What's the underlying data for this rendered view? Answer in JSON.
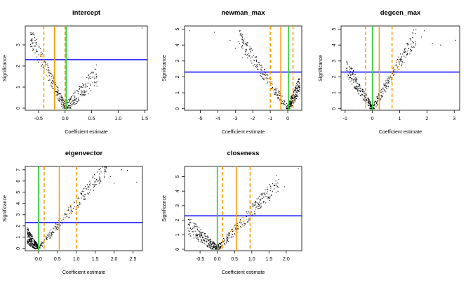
{
  "colors": {
    "points": "#000000",
    "significance_line": "#0000ff",
    "zero_line": "#33cc33",
    "estimate_line": "#ff9900",
    "axis": "#000000"
  },
  "chart_data": [
    {
      "type": "scatter",
      "title": "intercept",
      "xlabel": "Coefficient estimate",
      "ylabel": "Significance",
      "xlim": [
        -0.75,
        1.55
      ],
      "ylim": [
        -0.1,
        3.9
      ],
      "xticks": [
        -0.5,
        0.0,
        0.5,
        1.0,
        1.5
      ],
      "xtick_labels": [
        "-0.5",
        "0.0",
        "0.5",
        "1.0",
        "1.5"
      ],
      "yticks": [
        0,
        1,
        2,
        3
      ],
      "ytick_labels": [
        "0",
        "1",
        "2",
        "3"
      ],
      "threshold_y": 2.3,
      "zero_x": 0.02,
      "estimate_x": -0.2,
      "interval_x": [
        -0.4,
        0.0
      ],
      "point_shape": "v",
      "apex_x": 0.0,
      "left_slope": 5.2,
      "right_slope": 2.6,
      "x_range": [
        -0.65,
        0.6
      ],
      "point_count": 360,
      "highlight_band": [
        -0.5,
        -0.25
      ],
      "outliers": [
        [
          1.45,
          3.8
        ],
        [
          -0.62,
          3.3
        ],
        [
          -0.55,
          3.1
        ],
        [
          0.55,
          1.4
        ],
        [
          0.58,
          1.85
        ]
      ]
    },
    {
      "type": "scatter",
      "title": "newman_max",
      "xlabel": "Coefficient estimate",
      "ylabel": "Significance",
      "xlim": [
        -5.9,
        0.8
      ],
      "ylim": [
        -0.1,
        5.2
      ],
      "xticks": [
        -5,
        -4,
        -3,
        -2,
        -1,
        0
      ],
      "xtick_labels": [
        "-5",
        "-4",
        "-3",
        "-2",
        "-1",
        "0"
      ],
      "yticks": [
        0,
        1,
        2,
        3,
        4,
        5
      ],
      "ytick_labels": [
        "0",
        "1",
        "2",
        "3",
        "4",
        "5"
      ],
      "threshold_y": 2.3,
      "zero_x": 0.05,
      "estimate_x": -0.4,
      "interval_x": [
        -1.0,
        0.3
      ],
      "point_shape": "v",
      "apex_x": 0.0,
      "left_slope": 1.6,
      "right_slope": 2.2,
      "x_range": [
        -2.8,
        0.7
      ],
      "point_count": 420,
      "highlight_band": [
        -1.3,
        -0.8
      ],
      "outliers": [
        [
          -5.6,
          4.9
        ],
        [
          -4.2,
          4.8
        ],
        [
          -3.3,
          4.3
        ],
        [
          -3.0,
          3.8
        ],
        [
          -2.4,
          3.5
        ],
        [
          -2.1,
          3.0
        ],
        [
          -2.6,
          3.2
        ]
      ]
    },
    {
      "type": "scatter",
      "title": "degcen_max",
      "xlabel": "Coefficient estimate",
      "ylabel": "Significance",
      "xlim": [
        -1.15,
        3.2
      ],
      "ylim": [
        -0.1,
        5.2
      ],
      "xticks": [
        -1,
        0,
        1,
        2,
        3
      ],
      "xtick_labels": [
        "-1",
        "0",
        "1",
        "2",
        "3"
      ],
      "yticks": [
        0,
        1,
        2,
        3,
        4,
        5
      ],
      "ytick_labels": [
        "0",
        "1",
        "2",
        "3",
        "4",
        "5"
      ],
      "threshold_y": 2.3,
      "zero_x": 0.0,
      "estimate_x": 0.25,
      "interval_x": [
        -0.25,
        0.72
      ],
      "point_shape": "v",
      "apex_x": 0.0,
      "left_slope": 2.7,
      "right_slope": 2.9,
      "x_range": [
        -0.95,
        1.6
      ],
      "point_count": 420,
      "highlight_band": [
        0.55,
        0.95
      ],
      "outliers": [
        [
          3.05,
          4.3
        ],
        [
          2.2,
          4.1
        ],
        [
          1.9,
          4.9
        ],
        [
          2.5,
          4.0
        ],
        [
          1.8,
          4.5
        ],
        [
          -0.95,
          2.95
        ],
        [
          -0.7,
          2.4
        ]
      ]
    },
    {
      "type": "scatter",
      "title": "eigenvector",
      "xlabel": "Coefficient estimate",
      "ylabel": "Significance",
      "xlim": [
        -0.35,
        2.75
      ],
      "ylim": [
        -0.2,
        7.3
      ],
      "xticks": [
        0.0,
        0.5,
        1.0,
        1.5,
        2.0,
        2.5
      ],
      "xtick_labels": [
        "0.0",
        "0.5",
        "1.0",
        "1.5",
        "2.0",
        "2.5"
      ],
      "yticks": [
        0,
        1,
        2,
        3,
        4,
        5,
        6,
        7
      ],
      "ytick_labels": [
        "0",
        "1",
        "2",
        "3",
        "4",
        "5",
        "6",
        "7"
      ],
      "threshold_y": 2.3,
      "zero_x": 0.0,
      "estimate_x": 0.55,
      "interval_x": [
        0.15,
        1.0
      ],
      "point_shape": "v",
      "apex_x": 0.0,
      "left_slope": 3.8,
      "right_slope": 4.0,
      "x_range": [
        -0.3,
        1.8
      ],
      "point_count": 520,
      "highlight_band": [
        0.5,
        1.05
      ],
      "outliers": [
        [
          2.6,
          5.9
        ],
        [
          2.2,
          7.0
        ],
        [
          2.35,
          6.95
        ],
        [
          1.9,
          6.4
        ],
        [
          1.75,
          6.7
        ],
        [
          2.0,
          5.8
        ],
        [
          -0.25,
          1.3
        ]
      ]
    },
    {
      "type": "scatter",
      "title": "closeness",
      "xlabel": "Coefficient estimate",
      "ylabel": "Significance",
      "xlim": [
        -0.95,
        2.45
      ],
      "ylim": [
        -0.1,
        5.7
      ],
      "xticks": [
        -0.5,
        0.0,
        0.5,
        1.0,
        1.5,
        2.0
      ],
      "xtick_labels": [
        "-0.5",
        "0.0",
        "0.5",
        "1.0",
        "1.5",
        "2.0"
      ],
      "yticks": [
        0,
        1,
        2,
        3,
        4,
        5
      ],
      "ytick_labels": [
        "0",
        "1",
        "2",
        "3",
        "4",
        "5"
      ],
      "threshold_y": 2.3,
      "zero_x": 0.0,
      "estimate_x": 0.55,
      "interval_x": [
        0.15,
        0.95
      ],
      "point_shape": "v",
      "apex_x": 0.0,
      "left_slope": 1.9,
      "right_slope": 2.6,
      "x_range": [
        -0.85,
        1.8
      ],
      "point_count": 480,
      "highlight_band": [
        0.35,
        1.0
      ],
      "outliers": [
        [
          2.35,
          5.55
        ],
        [
          1.7,
          4.7
        ],
        [
          1.95,
          4.3
        ],
        [
          1.55,
          4.2
        ],
        [
          -0.85,
          1.45
        ],
        [
          -0.7,
          1.2
        ]
      ]
    }
  ]
}
